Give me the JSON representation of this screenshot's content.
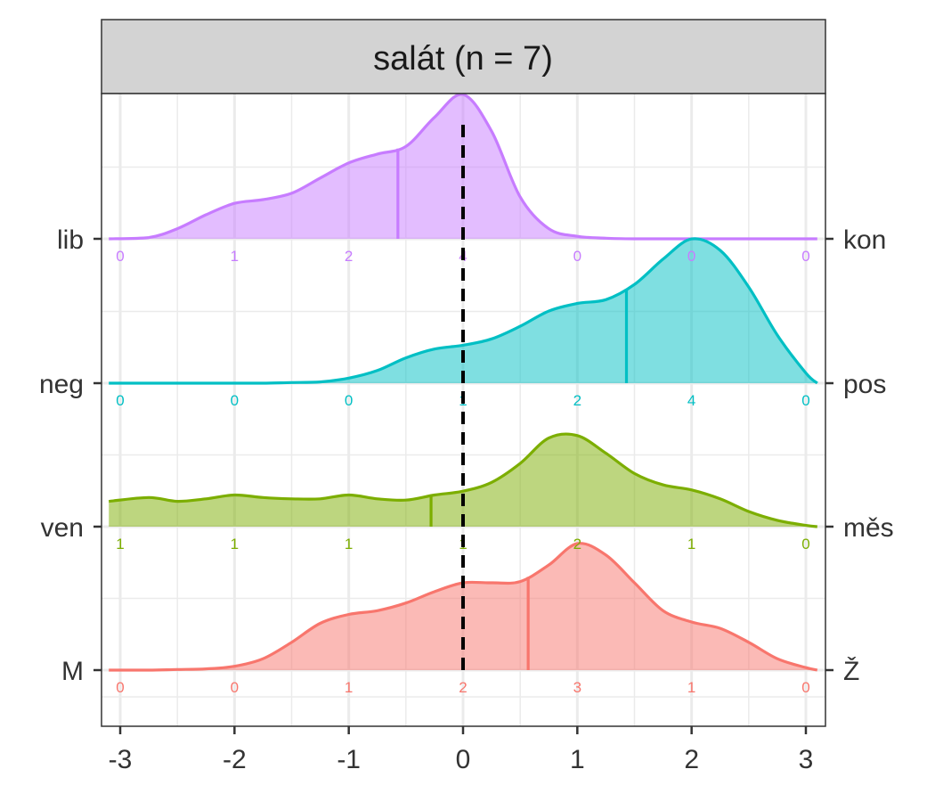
{
  "chart_data": {
    "type": "ridgeline",
    "title": "salát (n = 7)",
    "xlabel": "",
    "ylabel": "",
    "xlim": [
      -3.1,
      3.1
    ],
    "x_ticks": [
      "-3",
      "-2",
      "-1",
      "0",
      "1",
      "2",
      "3"
    ],
    "reference_line_x": 0,
    "grid": true,
    "count_positions": [
      -3,
      -2,
      -1,
      0,
      1,
      2,
      3
    ],
    "density_x": [
      -3.1,
      -2.75,
      -2.5,
      -2.25,
      -2,
      -1.75,
      -1.5,
      -1.25,
      -1,
      -0.75,
      -0.5,
      -0.25,
      0,
      0.25,
      0.5,
      0.75,
      1,
      1.25,
      1.5,
      1.75,
      2,
      2.25,
      2.5,
      2.75,
      3,
      3.1
    ],
    "series": [
      {
        "left_label": "M",
        "right_label": "Ž",
        "color": "#F8766D",
        "counts": [
          0,
          0,
          1,
          2,
          3,
          1,
          0
        ],
        "mean": 0.57,
        "density": [
          0,
          0,
          0.005,
          0.01,
          0.03,
          0.09,
          0.22,
          0.37,
          0.44,
          0.47,
          0.53,
          0.62,
          0.69,
          0.69,
          0.7,
          0.83,
          1.0,
          0.91,
          0.69,
          0.47,
          0.38,
          0.33,
          0.22,
          0.09,
          0.02,
          0
        ]
      },
      {
        "left_label": "ven",
        "right_label": "měs",
        "color": "#7CAE00",
        "counts": [
          1,
          1,
          1,
          1,
          2,
          1,
          0
        ],
        "mean": -0.28,
        "density": [
          0.2,
          0.23,
          0.2,
          0.22,
          0.25,
          0.23,
          0.22,
          0.22,
          0.25,
          0.22,
          0.21,
          0.25,
          0.28,
          0.35,
          0.5,
          0.7,
          0.72,
          0.58,
          0.42,
          0.33,
          0.29,
          0.22,
          0.12,
          0.05,
          0.01,
          0
        ]
      },
      {
        "left_label": "neg",
        "right_label": "pos",
        "color": "#00BFC4",
        "counts": [
          0,
          0,
          0,
          1,
          2,
          4,
          0
        ],
        "mean": 1.43,
        "density": [
          0,
          0,
          0,
          0,
          0,
          0,
          0.005,
          0.01,
          0.04,
          0.1,
          0.2,
          0.27,
          0.3,
          0.35,
          0.45,
          0.57,
          0.63,
          0.66,
          0.78,
          0.98,
          1.14,
          1.05,
          0.76,
          0.38,
          0.08,
          0
        ]
      },
      {
        "left_label": "lib",
        "right_label": "kon",
        "color": "#C77CFF",
        "counts": [
          0,
          1,
          2,
          4,
          0,
          0,
          0
        ],
        "mean": -0.57,
        "density": [
          0,
          0.01,
          0.08,
          0.19,
          0.28,
          0.31,
          0.36,
          0.48,
          0.6,
          0.67,
          0.73,
          0.96,
          1.14,
          0.85,
          0.33,
          0.08,
          0.02,
          0.005,
          0,
          0,
          0,
          0,
          0,
          0,
          0,
          0
        ]
      }
    ]
  }
}
